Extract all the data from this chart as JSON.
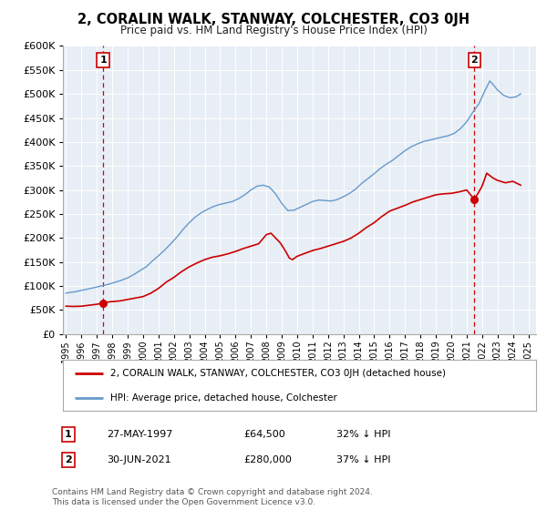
{
  "title": "2, CORALIN WALK, STANWAY, COLCHESTER, CO3 0JH",
  "subtitle": "Price paid vs. HM Land Registry's House Price Index (HPI)",
  "legend_entry1": "2, CORALIN WALK, STANWAY, COLCHESTER, CO3 0JH (detached house)",
  "legend_entry2": "HPI: Average price, detached house, Colchester",
  "annotation1_label": "1",
  "annotation1_date": "27-MAY-1997",
  "annotation1_price": "£64,500",
  "annotation1_hpi": "32% ↓ HPI",
  "annotation2_label": "2",
  "annotation2_date": "30-JUN-2021",
  "annotation2_price": "£280,000",
  "annotation2_hpi": "37% ↓ HPI",
  "footnote": "Contains HM Land Registry data © Crown copyright and database right 2024.\nThis data is licensed under the Open Government Licence v3.0.",
  "sale_color": "#cc0000",
  "hpi_color": "#6699cc",
  "vline_color": "#cc0000",
  "background_color": "#e8eef5",
  "ylim": [
    0,
    600000
  ],
  "xlim_start": 1994.8,
  "xlim_end": 2025.5,
  "marker1_x": 1997.41,
  "marker1_y": 64500,
  "marker2_x": 2021.5,
  "marker2_y": 280000,
  "sale_data": [
    [
      1995.0,
      58000
    ],
    [
      1995.5,
      57500
    ],
    [
      1996.0,
      58000
    ],
    [
      1996.5,
      60000
    ],
    [
      1997.0,
      62000
    ],
    [
      1997.41,
      64500
    ],
    [
      1997.8,
      67000
    ],
    [
      1998.5,
      69000
    ],
    [
      1999.0,
      72000
    ],
    [
      1999.5,
      75000
    ],
    [
      2000.0,
      78000
    ],
    [
      2000.5,
      85000
    ],
    [
      2001.0,
      95000
    ],
    [
      2001.5,
      108000
    ],
    [
      2002.0,
      118000
    ],
    [
      2002.5,
      130000
    ],
    [
      2003.0,
      140000
    ],
    [
      2003.5,
      148000
    ],
    [
      2004.0,
      155000
    ],
    [
      2004.5,
      160000
    ],
    [
      2005.0,
      163000
    ],
    [
      2005.5,
      167000
    ],
    [
      2006.0,
      172000
    ],
    [
      2006.5,
      178000
    ],
    [
      2007.0,
      183000
    ],
    [
      2007.5,
      188000
    ],
    [
      2008.0,
      207000
    ],
    [
      2008.3,
      210000
    ],
    [
      2008.6,
      200000
    ],
    [
      2008.9,
      190000
    ],
    [
      2009.2,
      175000
    ],
    [
      2009.5,
      158000
    ],
    [
      2009.7,
      155000
    ],
    [
      2010.0,
      162000
    ],
    [
      2010.5,
      168000
    ],
    [
      2011.0,
      174000
    ],
    [
      2011.5,
      178000
    ],
    [
      2012.0,
      183000
    ],
    [
      2012.5,
      188000
    ],
    [
      2013.0,
      193000
    ],
    [
      2013.5,
      200000
    ],
    [
      2014.0,
      210000
    ],
    [
      2014.5,
      222000
    ],
    [
      2015.0,
      232000
    ],
    [
      2015.5,
      245000
    ],
    [
      2016.0,
      256000
    ],
    [
      2016.5,
      262000
    ],
    [
      2017.0,
      268000
    ],
    [
      2017.5,
      275000
    ],
    [
      2018.0,
      280000
    ],
    [
      2018.5,
      285000
    ],
    [
      2019.0,
      290000
    ],
    [
      2019.5,
      292000
    ],
    [
      2020.0,
      293000
    ],
    [
      2020.5,
      296000
    ],
    [
      2021.0,
      300000
    ],
    [
      2021.5,
      280000
    ],
    [
      2022.0,
      308000
    ],
    [
      2022.3,
      335000
    ],
    [
      2022.7,
      325000
    ],
    [
      2023.0,
      320000
    ],
    [
      2023.5,
      315000
    ],
    [
      2024.0,
      318000
    ],
    [
      2024.5,
      310000
    ]
  ],
  "hpi_data": [
    [
      1995.0,
      85000
    ],
    [
      1995.3,
      87000
    ],
    [
      1995.6,
      88000
    ],
    [
      1996.0,
      91000
    ],
    [
      1996.3,
      93000
    ],
    [
      1996.6,
      95000
    ],
    [
      1997.0,
      98000
    ],
    [
      1997.4,
      101000
    ],
    [
      1997.8,
      104000
    ],
    [
      1998.2,
      108000
    ],
    [
      1998.6,
      112000
    ],
    [
      1999.0,
      117000
    ],
    [
      1999.4,
      124000
    ],
    [
      1999.8,
      132000
    ],
    [
      2000.2,
      140000
    ],
    [
      2000.6,
      152000
    ],
    [
      2001.0,
      163000
    ],
    [
      2001.4,
      175000
    ],
    [
      2001.8,
      188000
    ],
    [
      2002.2,
      202000
    ],
    [
      2002.6,
      218000
    ],
    [
      2003.0,
      232000
    ],
    [
      2003.4,
      244000
    ],
    [
      2003.8,
      253000
    ],
    [
      2004.2,
      260000
    ],
    [
      2004.6,
      266000
    ],
    [
      2005.0,
      270000
    ],
    [
      2005.4,
      273000
    ],
    [
      2005.8,
      276000
    ],
    [
      2006.2,
      282000
    ],
    [
      2006.6,
      290000
    ],
    [
      2007.0,
      300000
    ],
    [
      2007.4,
      308000
    ],
    [
      2007.8,
      310000
    ],
    [
      2008.2,
      306000
    ],
    [
      2008.6,
      292000
    ],
    [
      2009.0,
      272000
    ],
    [
      2009.4,
      257000
    ],
    [
      2009.8,
      258000
    ],
    [
      2010.2,
      264000
    ],
    [
      2010.6,
      270000
    ],
    [
      2011.0,
      276000
    ],
    [
      2011.4,
      279000
    ],
    [
      2011.8,
      278000
    ],
    [
      2012.2,
      277000
    ],
    [
      2012.6,
      280000
    ],
    [
      2013.0,
      286000
    ],
    [
      2013.4,
      293000
    ],
    [
      2013.8,
      302000
    ],
    [
      2014.2,
      314000
    ],
    [
      2014.6,
      324000
    ],
    [
      2015.0,
      334000
    ],
    [
      2015.4,
      345000
    ],
    [
      2015.8,
      354000
    ],
    [
      2016.2,
      362000
    ],
    [
      2016.6,
      372000
    ],
    [
      2017.0,
      382000
    ],
    [
      2017.4,
      390000
    ],
    [
      2017.8,
      396000
    ],
    [
      2018.2,
      401000
    ],
    [
      2018.6,
      404000
    ],
    [
      2019.0,
      407000
    ],
    [
      2019.4,
      410000
    ],
    [
      2019.8,
      413000
    ],
    [
      2020.2,
      418000
    ],
    [
      2020.6,
      428000
    ],
    [
      2021.0,
      442000
    ],
    [
      2021.4,
      462000
    ],
    [
      2021.8,
      480000
    ],
    [
      2022.2,
      508000
    ],
    [
      2022.5,
      527000
    ],
    [
      2022.7,
      520000
    ],
    [
      2023.0,
      508000
    ],
    [
      2023.4,
      497000
    ],
    [
      2023.8,
      492000
    ],
    [
      2024.2,
      494000
    ],
    [
      2024.5,
      500000
    ]
  ]
}
